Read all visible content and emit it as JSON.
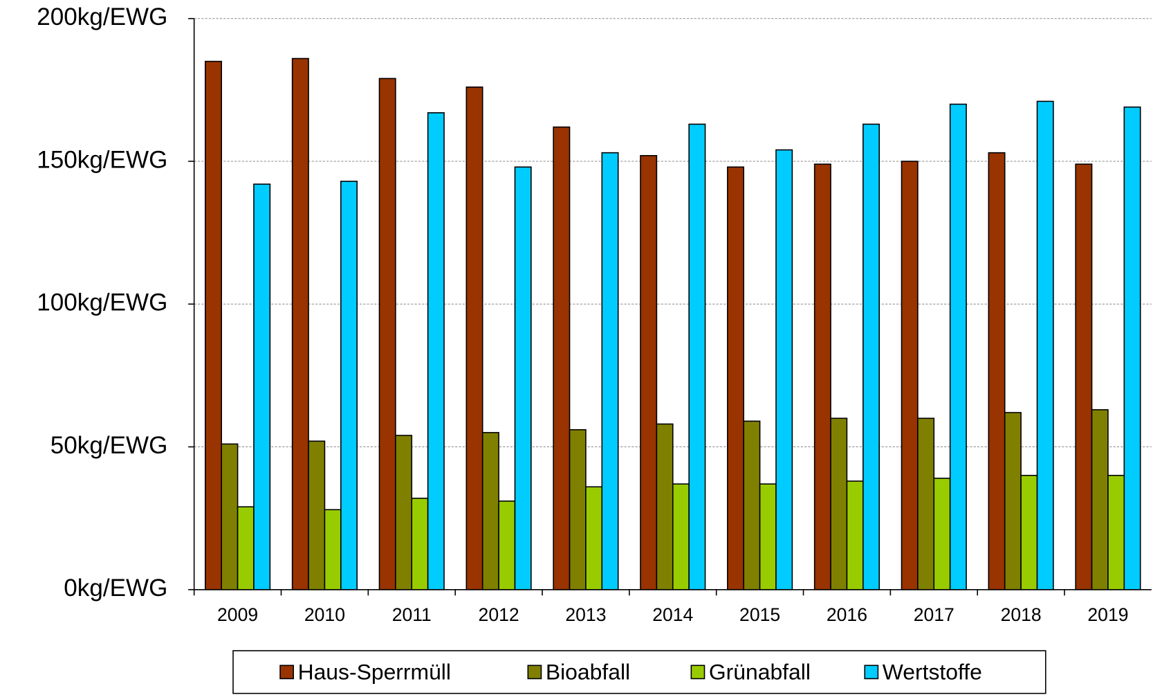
{
  "chart_data": {
    "type": "bar",
    "categories": [
      "2009",
      "2010",
      "2011",
      "2012",
      "2013",
      "2014",
      "2015",
      "2016",
      "2017",
      "2018",
      "2019"
    ],
    "series": [
      {
        "name": "Haus-Sperrmüll",
        "color": "#993300",
        "values": [
          185,
          186,
          179,
          176,
          162,
          152,
          148,
          149,
          150,
          153,
          149
        ]
      },
      {
        "name": "Bioabfall",
        "color": "#808000",
        "values": [
          51,
          52,
          54,
          55,
          56,
          58,
          59,
          60,
          60,
          62,
          63
        ]
      },
      {
        "name": "Grünabfall",
        "color": "#99cc00",
        "values": [
          29,
          28,
          32,
          31,
          36,
          37,
          37,
          38,
          39,
          40,
          40
        ]
      },
      {
        "name": "Wertstoffe",
        "color": "#00ccff",
        "values": [
          142,
          143,
          167,
          148,
          153,
          163,
          154,
          163,
          170,
          171,
          169
        ]
      }
    ],
    "ylim": [
      0,
      200
    ],
    "yticks": [
      {
        "value": 0,
        "label": "0kg/EWG"
      },
      {
        "value": 50,
        "label": "50kg/EWG"
      },
      {
        "value": 100,
        "label": "100kg/EWG"
      },
      {
        "value": 150,
        "label": "150kg/EWG"
      },
      {
        "value": 200,
        "label": "200kg/EWG"
      }
    ],
    "grid": true,
    "legend": "bottom"
  }
}
